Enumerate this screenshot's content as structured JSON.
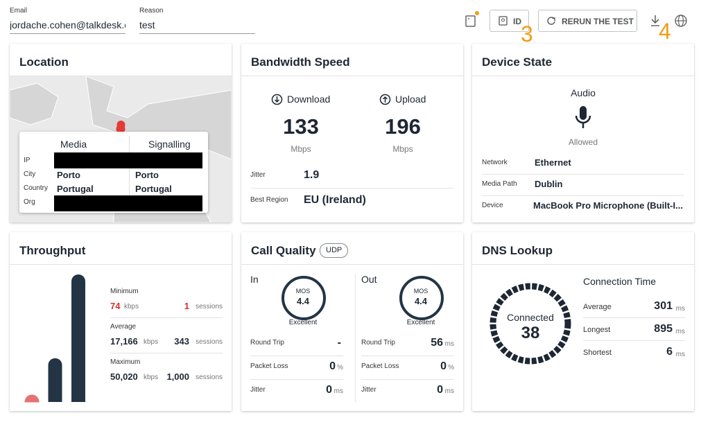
{
  "header": {
    "email_label": "Email",
    "email": "jordache.cohen@talkdesk.cc",
    "reason_label": "Reason",
    "reason": "test",
    "id_button": "ID",
    "rerun_button": "RERUN THE TEST",
    "annotations": [
      "3",
      "4"
    ]
  },
  "location": {
    "title": "Location",
    "columns": [
      "Media",
      "Signalling"
    ],
    "rows": [
      {
        "label": "IP"
      },
      {
        "label": "City",
        "media": "Porto",
        "signalling": "Porto"
      },
      {
        "label": "Country",
        "media": "Portugal",
        "signalling": "Portugal"
      },
      {
        "label": "Org"
      }
    ]
  },
  "bandwidth": {
    "title": "Bandwidth Speed",
    "download": {
      "label": "Download",
      "value": 133,
      "unit": "Mbps"
    },
    "upload": {
      "label": "Upload",
      "value": 196,
      "unit": "Mbps"
    },
    "jitter": {
      "label": "Jitter",
      "value": 1.9
    },
    "best_region": {
      "label": "Best Region",
      "value": "EU (Ireland)"
    }
  },
  "device": {
    "title": "Device State",
    "audio": "Audio",
    "status": "Allowed",
    "rows": [
      {
        "label": "Network",
        "value": "Ethernet"
      },
      {
        "label": "Media Path",
        "value": "Dublin"
      },
      {
        "label": "Device",
        "value": "MacBook Pro Microphone (Built-I..."
      }
    ]
  },
  "throughput": {
    "title": "Throughput",
    "stats": [
      {
        "label": "Minimum",
        "value": 74,
        "unit": "kbps",
        "sessions": 1,
        "sessions_unit": "sessions"
      },
      {
        "label": "Average",
        "value": {
          "value": 17166,
          "label": "17,166"
        },
        "unit": "kbps",
        "sessions": 343,
        "sessions_unit": "sessions"
      },
      {
        "label": "Maximum",
        "value": {
          "value": 50020,
          "label": "50,020"
        },
        "unit": "kbps",
        "sessions": {
          "value": 1000,
          "label": "1,000"
        },
        "sessions_unit": "sessions"
      }
    ]
  },
  "call_quality": {
    "title": "Call Quality",
    "protocol": "UDP",
    "in": {
      "label": "In",
      "mos_label": "MOS",
      "mos": 4.4,
      "rating": "Excellent",
      "rows": [
        {
          "label": "Round Trip",
          "value": "-"
        },
        {
          "label": "Packet Loss",
          "value": 0,
          "unit": "%"
        },
        {
          "label": "Jitter",
          "value": 0,
          "unit": "ms"
        }
      ]
    },
    "out": {
      "label": "Out",
      "mos_label": "MOS",
      "mos": 4.4,
      "rating": "Excellent",
      "rows": [
        {
          "label": "Round Trip",
          "value": 56,
          "unit": "ms"
        },
        {
          "label": "Packet Loss",
          "value": 0,
          "unit": "%"
        },
        {
          "label": "Jitter",
          "value": 0,
          "unit": "ms"
        }
      ]
    }
  },
  "dns": {
    "title": "DNS Lookup",
    "status": "Connected",
    "count": 38,
    "connection_title": "Connection Time",
    "rows": [
      {
        "label": "Average",
        "value": 301,
        "unit": "ms"
      },
      {
        "label": "Longest",
        "value": 895,
        "unit": "ms"
      },
      {
        "label": "Shortest",
        "value": 6,
        "unit": "ms"
      }
    ]
  }
}
